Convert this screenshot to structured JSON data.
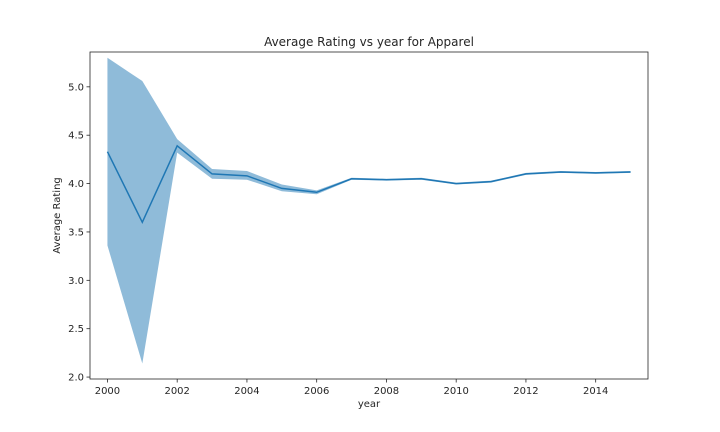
{
  "chart_data": {
    "type": "line",
    "title": "Average Rating vs year for Apparel",
    "xlabel": "year",
    "ylabel": "Average Rating",
    "xlim": [
      1999.5,
      2015.5
    ],
    "ylim": [
      1.98,
      5.36
    ],
    "xticks": [
      2000,
      2002,
      2004,
      2006,
      2008,
      2010,
      2012,
      2014
    ],
    "yticks": [
      2.0,
      2.5,
      3.0,
      3.5,
      4.0,
      4.5,
      5.0
    ],
    "grid": false,
    "colors": {
      "line": "#1f77b4",
      "band": "#1f77b4"
    },
    "series": [
      {
        "x": [
          2000,
          2001,
          2002,
          2003,
          2004,
          2005,
          2006,
          2007,
          2008,
          2009,
          2010,
          2011,
          2012,
          2013,
          2014,
          2015
        ],
        "values": [
          4.33,
          3.6,
          4.39,
          4.1,
          4.08,
          3.95,
          3.91,
          4.05,
          4.04,
          4.05,
          4.0,
          4.02,
          4.1,
          4.12,
          4.11,
          4.12
        ],
        "lower": [
          3.36,
          2.14,
          4.32,
          4.05,
          4.04,
          3.92,
          3.89,
          4.04,
          4.03,
          4.04,
          3.99,
          4.01,
          4.09,
          4.11,
          4.1,
          4.11
        ],
        "upper": [
          5.3,
          5.06,
          4.46,
          4.15,
          4.13,
          3.99,
          3.93,
          4.06,
          4.05,
          4.06,
          4.01,
          4.03,
          4.11,
          4.13,
          4.12,
          4.13
        ]
      }
    ]
  }
}
